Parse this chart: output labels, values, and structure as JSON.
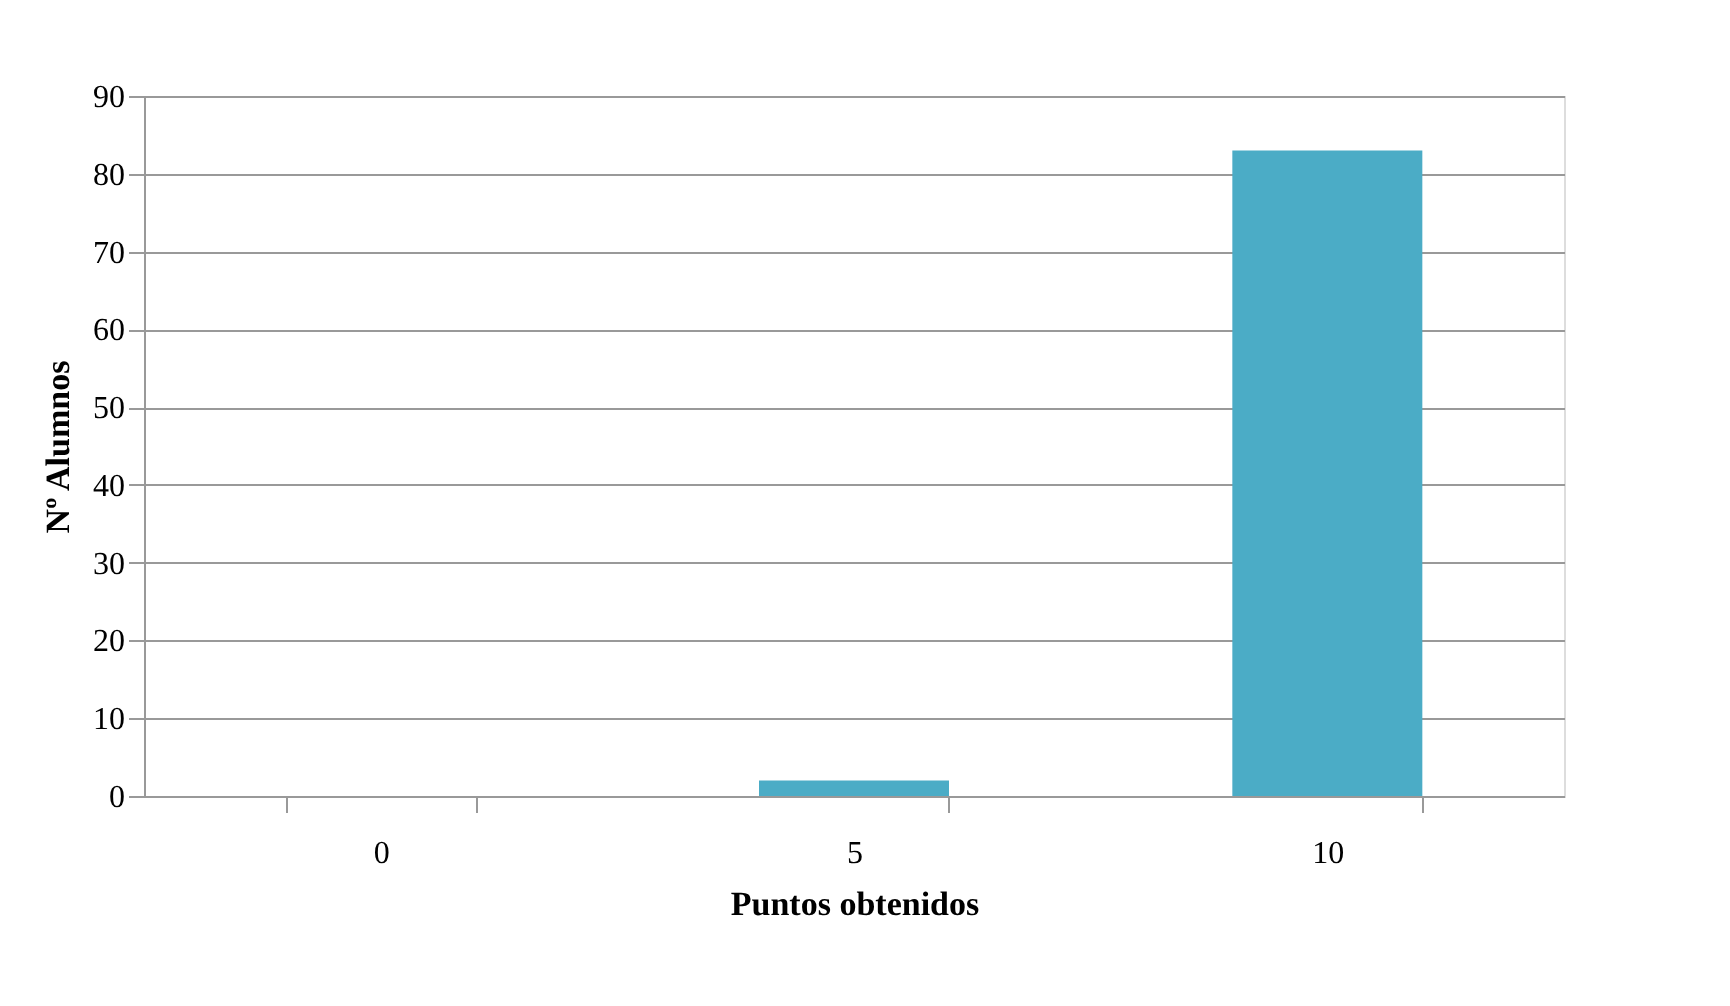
{
  "chart_data": {
    "type": "bar",
    "xlabel": "Puntos obtenidos",
    "ylabel": "Nº Alumnos",
    "categories": [
      "0",
      "5",
      "10"
    ],
    "values": [
      0,
      2,
      83
    ],
    "color": "#4bacc6",
    "ylim": [
      0,
      90
    ],
    "yticks": [
      0,
      10,
      20,
      30,
      40,
      50,
      60,
      70,
      80,
      90
    ],
    "grid": "y"
  }
}
